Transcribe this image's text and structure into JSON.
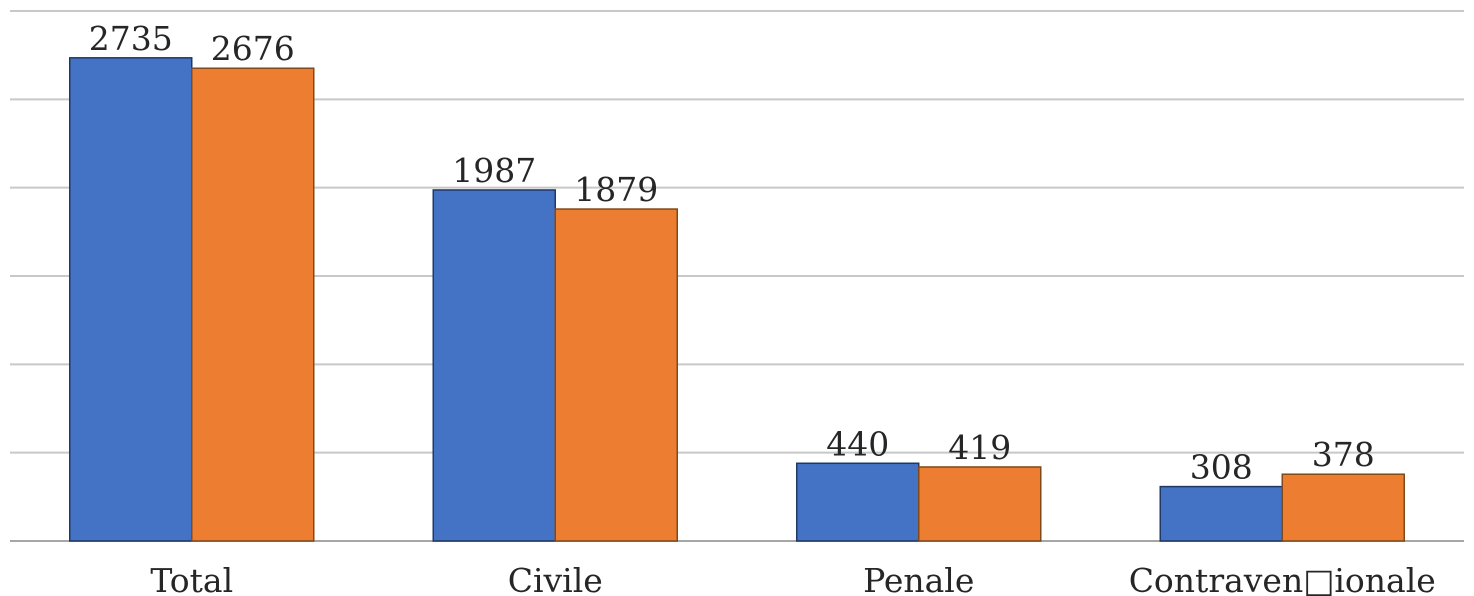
{
  "chart_data": {
    "type": "bar",
    "categories": [
      "Total",
      "Civile",
      "Penale",
      "Contraven□ionale"
    ],
    "series": [
      {
        "values": [
          2735,
          1987,
          440,
          308
        ],
        "color": "#4472c4"
      },
      {
        "values": [
          2676,
          1879,
          419,
          378
        ],
        "color": "#ed7d31"
      }
    ],
    "ylim": [
      0,
      3000
    ],
    "grid": true,
    "legend": "none",
    "xlabel": "",
    "ylabel": ""
  }
}
